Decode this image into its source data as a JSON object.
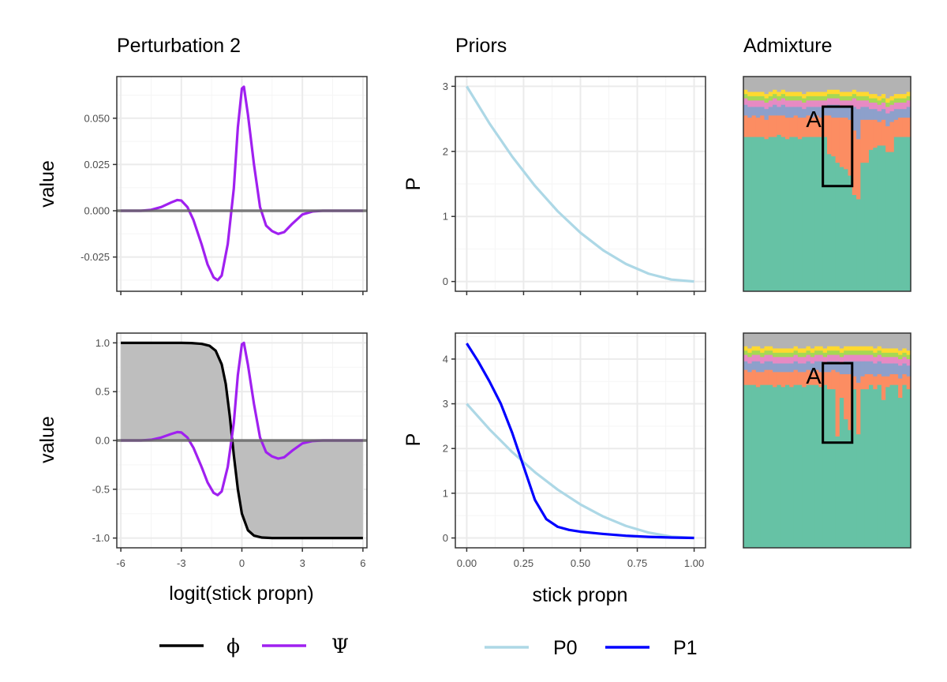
{
  "colors": {
    "phi": "#000000",
    "psi": "#a020f0",
    "p0": "#add8e6",
    "p1": "#0000ff",
    "shade": "#bebebe",
    "zero_line": "#666666",
    "grid_major": "#ebebeb",
    "grid_minor": "#f5f5f5",
    "panel_border": "#333333",
    "admix": [
      "#66c2a5",
      "#fc8d62",
      "#8da0cb",
      "#e78ac3",
      "#a6d854",
      "#ffd92f",
      "#b3b3b3"
    ]
  },
  "chart_data": [
    {
      "id": "perturbation-top",
      "type": "line",
      "title": "Perturbation 2",
      "xlabel": "",
      "ylabel": "value",
      "xlim": [
        -6.2,
        6.2
      ],
      "ylim": [
        -0.0435,
        0.0725
      ],
      "xticks": [
        -6,
        -3,
        0,
        3,
        6
      ],
      "xtick_labels_shown": false,
      "yticks": [
        -0.025,
        0.0,
        0.025,
        0.05
      ],
      "ytick_labels": [
        "-0.025",
        "0.000",
        "0.025",
        "0.050"
      ],
      "grid": true,
      "hline_y": 0,
      "series": [
        {
          "name": "Ψ",
          "color_key": "psi",
          "x": [
            -6,
            -5,
            -4.5,
            -4,
            -3.5,
            -3.2,
            -3.0,
            -2.7,
            -2.4,
            -2.0,
            -1.7,
            -1.4,
            -1.2,
            -1.0,
            -0.7,
            -0.4,
            -0.2,
            0.0,
            0.1,
            0.3,
            0.6,
            0.9,
            1.2,
            1.5,
            1.8,
            2.1,
            2.5,
            3.0,
            3.5,
            4.0,
            5.0,
            6.0
          ],
          "y": [
            0.0,
            0.0,
            0.0005,
            0.002,
            0.0045,
            0.0058,
            0.0055,
            0.002,
            -0.005,
            -0.018,
            -0.029,
            -0.036,
            -0.0375,
            -0.035,
            -0.018,
            0.012,
            0.045,
            0.066,
            0.067,
            0.052,
            0.025,
            0.002,
            -0.008,
            -0.011,
            -0.0125,
            -0.0115,
            -0.007,
            -0.002,
            -0.0004,
            0.0,
            0.0,
            0.0
          ]
        }
      ]
    },
    {
      "id": "perturbation-bottom",
      "type": "line",
      "title": "",
      "xlabel": "logit(stick propn)",
      "ylabel": "value",
      "xlim": [
        -6.2,
        6.2
      ],
      "ylim": [
        -1.1,
        1.1
      ],
      "xticks": [
        -6,
        -3,
        0,
        3,
        6
      ],
      "xtick_labels": [
        "-6",
        "-3",
        "0",
        "3",
        "6"
      ],
      "yticks": [
        -1.0,
        -0.5,
        0.0,
        0.5,
        1.0
      ],
      "ytick_labels": [
        "-1.0",
        "-0.5",
        "0.0",
        "0.5",
        "1.0"
      ],
      "grid": true,
      "hline_y": 0,
      "shaded_region": "between phi and 0",
      "series": [
        {
          "name": "ϕ",
          "color_key": "phi",
          "x": [
            -6,
            -3,
            -2.5,
            -2.0,
            -1.6,
            -1.3,
            -1.0,
            -0.8,
            -0.6,
            -0.4,
            -0.2,
            0.0,
            0.3,
            0.6,
            1.0,
            1.5,
            2.0,
            3.0,
            6.0
          ],
          "y": [
            1.0,
            1.0,
            0.998,
            0.99,
            0.97,
            0.92,
            0.78,
            0.58,
            0.25,
            -0.15,
            -0.5,
            -0.75,
            -0.92,
            -0.975,
            -0.995,
            -1.0,
            -1.0,
            -1.0,
            -1.0
          ]
        },
        {
          "name": "Ψ",
          "color_key": "psi",
          "x": [
            -6,
            -5,
            -4.5,
            -4,
            -3.5,
            -3.2,
            -3.0,
            -2.7,
            -2.4,
            -2.0,
            -1.7,
            -1.4,
            -1.2,
            -1.0,
            -0.7,
            -0.4,
            -0.2,
            0.0,
            0.1,
            0.3,
            0.6,
            0.9,
            1.2,
            1.5,
            1.8,
            2.1,
            2.5,
            3.0,
            3.5,
            4.0,
            5.0,
            6.0
          ],
          "y": [
            0.0,
            0.0,
            0.007,
            0.03,
            0.067,
            0.086,
            0.082,
            0.03,
            -0.075,
            -0.27,
            -0.43,
            -0.537,
            -0.56,
            -0.522,
            -0.27,
            0.18,
            0.67,
            0.985,
            1.0,
            0.776,
            0.373,
            0.03,
            -0.12,
            -0.164,
            -0.186,
            -0.172,
            -0.104,
            -0.03,
            -0.006,
            0.0,
            0.0,
            0.0
          ]
        }
      ]
    },
    {
      "id": "priors-top",
      "type": "line",
      "title": "Priors",
      "xlabel": "",
      "ylabel": "P",
      "xlim": [
        -0.05,
        1.05
      ],
      "ylim": [
        -0.15,
        3.15
      ],
      "xticks": [
        0,
        0.25,
        0.5,
        0.75,
        1.0
      ],
      "xtick_labels_shown": false,
      "yticks": [
        0,
        1,
        2,
        3
      ],
      "ytick_labels": [
        "0",
        "1",
        "2",
        "3"
      ],
      "grid": true,
      "series": [
        {
          "name": "P0",
          "color_key": "p0",
          "x": [
            0.0,
            0.1,
            0.2,
            0.3,
            0.4,
            0.5,
            0.6,
            0.7,
            0.8,
            0.9,
            1.0
          ],
          "y": [
            3.0,
            2.43,
            1.92,
            1.47,
            1.08,
            0.75,
            0.48,
            0.27,
            0.12,
            0.03,
            0.0
          ]
        }
      ]
    },
    {
      "id": "priors-bottom",
      "type": "line",
      "title": "",
      "xlabel": "stick propn",
      "ylabel": "P",
      "xlim": [
        -0.05,
        1.05
      ],
      "ylim": [
        -0.22,
        4.58
      ],
      "xticks": [
        0,
        0.25,
        0.5,
        0.75,
        1.0
      ],
      "xtick_labels": [
        "0.00",
        "0.25",
        "0.50",
        "0.75",
        "1.00"
      ],
      "yticks": [
        0,
        1,
        2,
        3,
        4
      ],
      "ytick_labels": [
        "0",
        "1",
        "2",
        "3",
        "4"
      ],
      "grid": true,
      "series": [
        {
          "name": "P0",
          "color_key": "p0",
          "x": [
            0.0,
            0.1,
            0.2,
            0.3,
            0.4,
            0.5,
            0.6,
            0.7,
            0.8,
            0.9,
            1.0
          ],
          "y": [
            3.0,
            2.43,
            1.92,
            1.47,
            1.08,
            0.75,
            0.48,
            0.27,
            0.12,
            0.03,
            0.0
          ]
        },
        {
          "name": "P1",
          "color_key": "p1",
          "x": [
            0.0,
            0.05,
            0.1,
            0.15,
            0.2,
            0.25,
            0.3,
            0.35,
            0.4,
            0.45,
            0.5,
            0.6,
            0.7,
            0.8,
            0.9,
            1.0
          ],
          "y": [
            4.35,
            3.95,
            3.5,
            3.0,
            2.35,
            1.6,
            0.85,
            0.42,
            0.25,
            0.18,
            0.14,
            0.09,
            0.05,
            0.025,
            0.01,
            0.0
          ]
        }
      ]
    },
    {
      "id": "admixture-top",
      "type": "area",
      "title": "Admixture",
      "box_label": "A",
      "n_individuals": 40,
      "box_individuals": [
        19,
        25
      ],
      "box_y_range": [
        0.49,
        0.86
      ],
      "stack_order": [
        "green",
        "orange",
        "blue",
        "pink",
        "lime",
        "yellow",
        "gray"
      ],
      "proportions": {
        "green": [
          0.72,
          0.72,
          0.72,
          0.72,
          0.72,
          0.71,
          0.72,
          0.72,
          0.73,
          0.72,
          0.71,
          0.72,
          0.72,
          0.71,
          0.72,
          0.72,
          0.72,
          0.72,
          0.72,
          0.72,
          0.64,
          0.63,
          0.6,
          0.58,
          0.57,
          0.54,
          0.45,
          0.43,
          0.6,
          0.6,
          0.66,
          0.67,
          0.68,
          0.68,
          0.65,
          0.65,
          0.72,
          0.72,
          0.72,
          0.72
        ],
        "orange": [
          0.1,
          0.09,
          0.1,
          0.09,
          0.1,
          0.09,
          0.1,
          0.1,
          0.09,
          0.1,
          0.1,
          0.09,
          0.1,
          0.1,
          0.09,
          0.1,
          0.09,
          0.1,
          0.09,
          0.1,
          0.18,
          0.18,
          0.21,
          0.23,
          0.24,
          0.26,
          0.3,
          0.28,
          0.2,
          0.2,
          0.14,
          0.13,
          0.11,
          0.12,
          0.12,
          0.14,
          0.08,
          0.09,
          0.09,
          0.09
        ],
        "blue": [
          0.05,
          0.05,
          0.04,
          0.05,
          0.04,
          0.05,
          0.04,
          0.05,
          0.04,
          0.05,
          0.05,
          0.05,
          0.04,
          0.05,
          0.04,
          0.04,
          0.05,
          0.04,
          0.05,
          0.04,
          0.05,
          0.06,
          0.06,
          0.05,
          0.05,
          0.06,
          0.11,
          0.14,
          0.06,
          0.06,
          0.05,
          0.05,
          0.05,
          0.05,
          0.06,
          0.05,
          0.05,
          0.04,
          0.04,
          0.05
        ],
        "pink": [
          0.03,
          0.03,
          0.03,
          0.03,
          0.03,
          0.03,
          0.03,
          0.03,
          0.03,
          0.03,
          0.03,
          0.03,
          0.03,
          0.03,
          0.03,
          0.03,
          0.03,
          0.03,
          0.03,
          0.03,
          0.03,
          0.03,
          0.03,
          0.03,
          0.03,
          0.03,
          0.04,
          0.04,
          0.03,
          0.03,
          0.03,
          0.03,
          0.03,
          0.03,
          0.03,
          0.03,
          0.03,
          0.03,
          0.03,
          0.03
        ],
        "lime": [
          0.02,
          0.02,
          0.02,
          0.02,
          0.02,
          0.02,
          0.02,
          0.02,
          0.02,
          0.02,
          0.02,
          0.02,
          0.02,
          0.02,
          0.02,
          0.02,
          0.02,
          0.02,
          0.02,
          0.02,
          0.02,
          0.02,
          0.02,
          0.02,
          0.02,
          0.02,
          0.02,
          0.02,
          0.02,
          0.02,
          0.02,
          0.02,
          0.02,
          0.02,
          0.02,
          0.02,
          0.02,
          0.02,
          0.02,
          0.02
        ],
        "yellow": [
          0.02,
          0.02,
          0.02,
          0.02,
          0.02,
          0.02,
          0.02,
          0.02,
          0.02,
          0.02,
          0.02,
          0.02,
          0.02,
          0.02,
          0.02,
          0.02,
          0.02,
          0.02,
          0.02,
          0.02,
          0.02,
          0.02,
          0.02,
          0.02,
          0.02,
          0.02,
          0.02,
          0.02,
          0.02,
          0.02,
          0.02,
          0.02,
          0.02,
          0.02,
          0.02,
          0.02,
          0.02,
          0.02,
          0.02,
          0.02
        ],
        "gray": [
          0.06,
          0.07,
          0.07,
          0.07,
          0.07,
          0.08,
          0.07,
          0.06,
          0.07,
          0.06,
          0.07,
          0.07,
          0.07,
          0.07,
          0.08,
          0.07,
          0.07,
          0.07,
          0.07,
          0.07,
          0.06,
          0.06,
          0.06,
          0.07,
          0.07,
          0.07,
          0.06,
          0.07,
          0.07,
          0.07,
          0.08,
          0.08,
          0.09,
          0.08,
          0.1,
          0.09,
          0.08,
          0.08,
          0.08,
          0.07
        ]
      }
    },
    {
      "id": "admixture-bottom",
      "type": "area",
      "title": "",
      "box_label": "A",
      "n_individuals": 40,
      "box_individuals": [
        19,
        25
      ],
      "box_y_range": [
        0.49,
        0.86
      ],
      "stack_order": [
        "green",
        "orange",
        "blue",
        "pink",
        "lime",
        "yellow",
        "gray"
      ],
      "proportions": {
        "green": [
          0.76,
          0.76,
          0.76,
          0.75,
          0.76,
          0.76,
          0.76,
          0.75,
          0.76,
          0.75,
          0.76,
          0.75,
          0.76,
          0.76,
          0.75,
          0.76,
          0.76,
          0.76,
          0.75,
          0.76,
          0.74,
          0.74,
          0.52,
          0.7,
          0.6,
          0.55,
          0.74,
          0.53,
          0.74,
          0.74,
          0.76,
          0.74,
          0.76,
          0.69,
          0.75,
          0.76,
          0.76,
          0.7,
          0.76,
          0.74
        ],
        "orange": [
          0.07,
          0.06,
          0.07,
          0.07,
          0.06,
          0.07,
          0.07,
          0.07,
          0.06,
          0.07,
          0.06,
          0.07,
          0.07,
          0.06,
          0.07,
          0.07,
          0.06,
          0.07,
          0.07,
          0.06,
          0.08,
          0.09,
          0.3,
          0.11,
          0.21,
          0.26,
          0.06,
          0.24,
          0.06,
          0.07,
          0.05,
          0.06,
          0.05,
          0.11,
          0.05,
          0.05,
          0.05,
          0.09,
          0.05,
          0.06
        ],
        "blue": [
          0.04,
          0.04,
          0.04,
          0.05,
          0.04,
          0.04,
          0.04,
          0.04,
          0.04,
          0.04,
          0.04,
          0.04,
          0.04,
          0.04,
          0.04,
          0.04,
          0.04,
          0.04,
          0.05,
          0.04,
          0.05,
          0.04,
          0.05,
          0.05,
          0.06,
          0.06,
          0.07,
          0.1,
          0.07,
          0.06,
          0.06,
          0.06,
          0.06,
          0.06,
          0.06,
          0.05,
          0.05,
          0.06,
          0.05,
          0.05
        ],
        "pink": [
          0.03,
          0.03,
          0.03,
          0.03,
          0.03,
          0.03,
          0.03,
          0.03,
          0.03,
          0.03,
          0.03,
          0.03,
          0.03,
          0.03,
          0.03,
          0.03,
          0.03,
          0.03,
          0.03,
          0.03,
          0.03,
          0.03,
          0.03,
          0.03,
          0.03,
          0.03,
          0.03,
          0.03,
          0.03,
          0.03,
          0.03,
          0.03,
          0.03,
          0.03,
          0.03,
          0.03,
          0.03,
          0.03,
          0.03,
          0.03
        ],
        "lime": [
          0.02,
          0.02,
          0.02,
          0.02,
          0.02,
          0.02,
          0.02,
          0.02,
          0.02,
          0.02,
          0.02,
          0.02,
          0.02,
          0.02,
          0.02,
          0.02,
          0.02,
          0.02,
          0.02,
          0.02,
          0.02,
          0.02,
          0.02,
          0.02,
          0.02,
          0.02,
          0.02,
          0.02,
          0.02,
          0.02,
          0.02,
          0.02,
          0.02,
          0.02,
          0.02,
          0.02,
          0.02,
          0.02,
          0.02,
          0.02
        ],
        "yellow": [
          0.02,
          0.02,
          0.02,
          0.02,
          0.02,
          0.02,
          0.02,
          0.02,
          0.02,
          0.02,
          0.02,
          0.02,
          0.02,
          0.02,
          0.02,
          0.02,
          0.02,
          0.02,
          0.02,
          0.02,
          0.02,
          0.02,
          0.02,
          0.02,
          0.02,
          0.02,
          0.02,
          0.02,
          0.02,
          0.02,
          0.02,
          0.02,
          0.02,
          0.02,
          0.02,
          0.02,
          0.02,
          0.02,
          0.02,
          0.02
        ],
        "gray": [
          0.06,
          0.07,
          0.06,
          0.06,
          0.07,
          0.06,
          0.06,
          0.07,
          0.07,
          0.07,
          0.07,
          0.07,
          0.06,
          0.07,
          0.07,
          0.06,
          0.07,
          0.06,
          0.06,
          0.07,
          0.06,
          0.06,
          0.06,
          0.07,
          0.06,
          0.06,
          0.06,
          0.06,
          0.06,
          0.06,
          0.06,
          0.07,
          0.06,
          0.07,
          0.07,
          0.07,
          0.07,
          0.08,
          0.07,
          0.08
        ]
      }
    }
  ],
  "legends": [
    {
      "items": [
        {
          "label": "ϕ",
          "color_key": "phi"
        },
        {
          "label": "Ψ",
          "color_key": "psi"
        }
      ]
    },
    {
      "items": [
        {
          "label": "P0",
          "color_key": "p0"
        },
        {
          "label": "P1",
          "color_key": "p1"
        }
      ]
    }
  ]
}
